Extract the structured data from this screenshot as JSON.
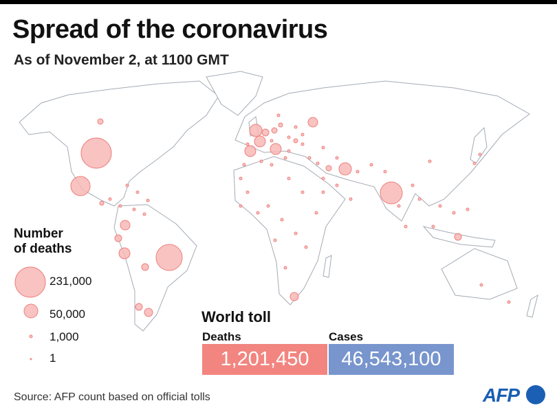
{
  "header": {
    "title": "Spread of the coronavirus",
    "subtitle": "As of November 2, at 1100 GMT"
  },
  "legend": {
    "title_line1": "Number",
    "title_line2": "of deaths",
    "items": [
      {
        "label": "231,000",
        "value": 231000
      },
      {
        "label": "50,000",
        "value": 50000
      },
      {
        "label": "1,000",
        "value": 1000
      },
      {
        "label": "1",
        "value": 1
      }
    ]
  },
  "world_toll": {
    "title": "World toll",
    "deaths_label": "Deaths",
    "deaths_value": "1,201,450",
    "cases_label": "Cases",
    "cases_value": "46,543,100"
  },
  "colors": {
    "bubble_fill": "#f7b8b6",
    "bubble_stroke": "#ee7e7c",
    "deaths_box": "#f28580",
    "cases_box": "#7895cd",
    "land_stroke": "#9aa3ad",
    "logo": "#1a5fb4"
  },
  "source": "Source: AFP count based on official tolls",
  "logo": "AFP"
}
